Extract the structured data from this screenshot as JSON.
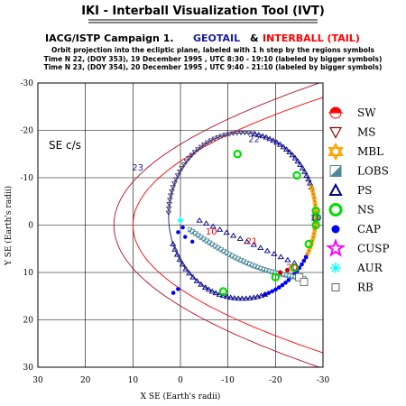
{
  "header": {
    "title": "IKI - Interball Visualization Tool (IVT)",
    "campaign": "IACG/ISTP Campaign 1.",
    "spacecraft_a": "GEOTAIL",
    "amp": "&",
    "spacecraft_b": "INTERBALL (TAIL)",
    "desc": "Orbit projection into the ecliptic plane, labeled with 1 h step by the regions symbols",
    "time1": "Time N 22, (DOY 353), 19 December 1995 , UTC 8:30 - 19:10 (labeled by bigger symbols)",
    "time2": "Time N 23, (DOY 354), 20 December 1995 , UTC 9:40 - 21:10 (labeled by bigger symbols)"
  },
  "colors": {
    "geotail": "#1a1a9e",
    "interball": "#ff0000",
    "track": "#2e2e80",
    "tail_track": "#3a7a8a",
    "magnetopause": "#ff0000",
    "bowshock": "#b01020"
  },
  "chart_data": {
    "type": "scatter",
    "frame_label": "SE c/s",
    "xlabel": "X SE (Earth's radii)",
    "ylabel": "Y SE (Earth's radii)",
    "xlim": [
      30,
      -30
    ],
    "ylim": [
      -30,
      30
    ],
    "x_ticks": [
      "30",
      "20",
      "10",
      "0",
      "-10",
      "-20",
      "-30"
    ],
    "y_ticks": [
      "-30",
      "-20",
      "-10",
      "0",
      "10",
      "20",
      "30"
    ],
    "grid": true,
    "legend_placement": "right",
    "legend": [
      {
        "code": "SW",
        "icon": "semicircle-icon",
        "color": "#ff0000"
      },
      {
        "code": "MS",
        "icon": "triangle-down-icon",
        "color": "#8b0000"
      },
      {
        "code": "MBL",
        "icon": "star-of-david-icon",
        "color": "#ffa500"
      },
      {
        "code": "LOBS",
        "icon": "half-square-icon",
        "color": "#4a8a9a"
      },
      {
        "code": "PS",
        "icon": "triangle-up-icon",
        "color": "#00008b"
      },
      {
        "code": "NS",
        "icon": "ring-icon",
        "color": "#00dd00"
      },
      {
        "code": "CAP",
        "icon": "dot-icon",
        "color": "#0000ff"
      },
      {
        "code": "CUSP",
        "icon": "star-icon",
        "color": "#ff00ff"
      },
      {
        "code": "AUR",
        "icon": "asterisk-icon",
        "color": "#00ffff"
      },
      {
        "code": "RB",
        "icon": "square-icon",
        "color": "#666666"
      }
    ],
    "annotations": [
      {
        "text": "22",
        "x": -15.5,
        "y": -17.5,
        "color": "#1a1a9e"
      },
      {
        "text": "23",
        "x": 9,
        "y": -11.5,
        "color": "#1a1a9e"
      },
      {
        "text": "10",
        "x": -28.5,
        "y": -1,
        "color": "#1a1a9e"
      },
      {
        "text": "10",
        "x": -6.5,
        "y": 2,
        "color": "#ff0000"
      },
      {
        "text": "21",
        "x": -15,
        "y": 4,
        "color": "#ff0000"
      },
      {
        "text": "20",
        "x": -23.5,
        "y": 9.5,
        "color": "#ff0000"
      }
    ],
    "series": [
      {
        "name": "GEOTAIL",
        "role": "orbit"
      },
      {
        "name": "INTERBALL (TAIL)",
        "role": "orbit"
      }
    ]
  }
}
